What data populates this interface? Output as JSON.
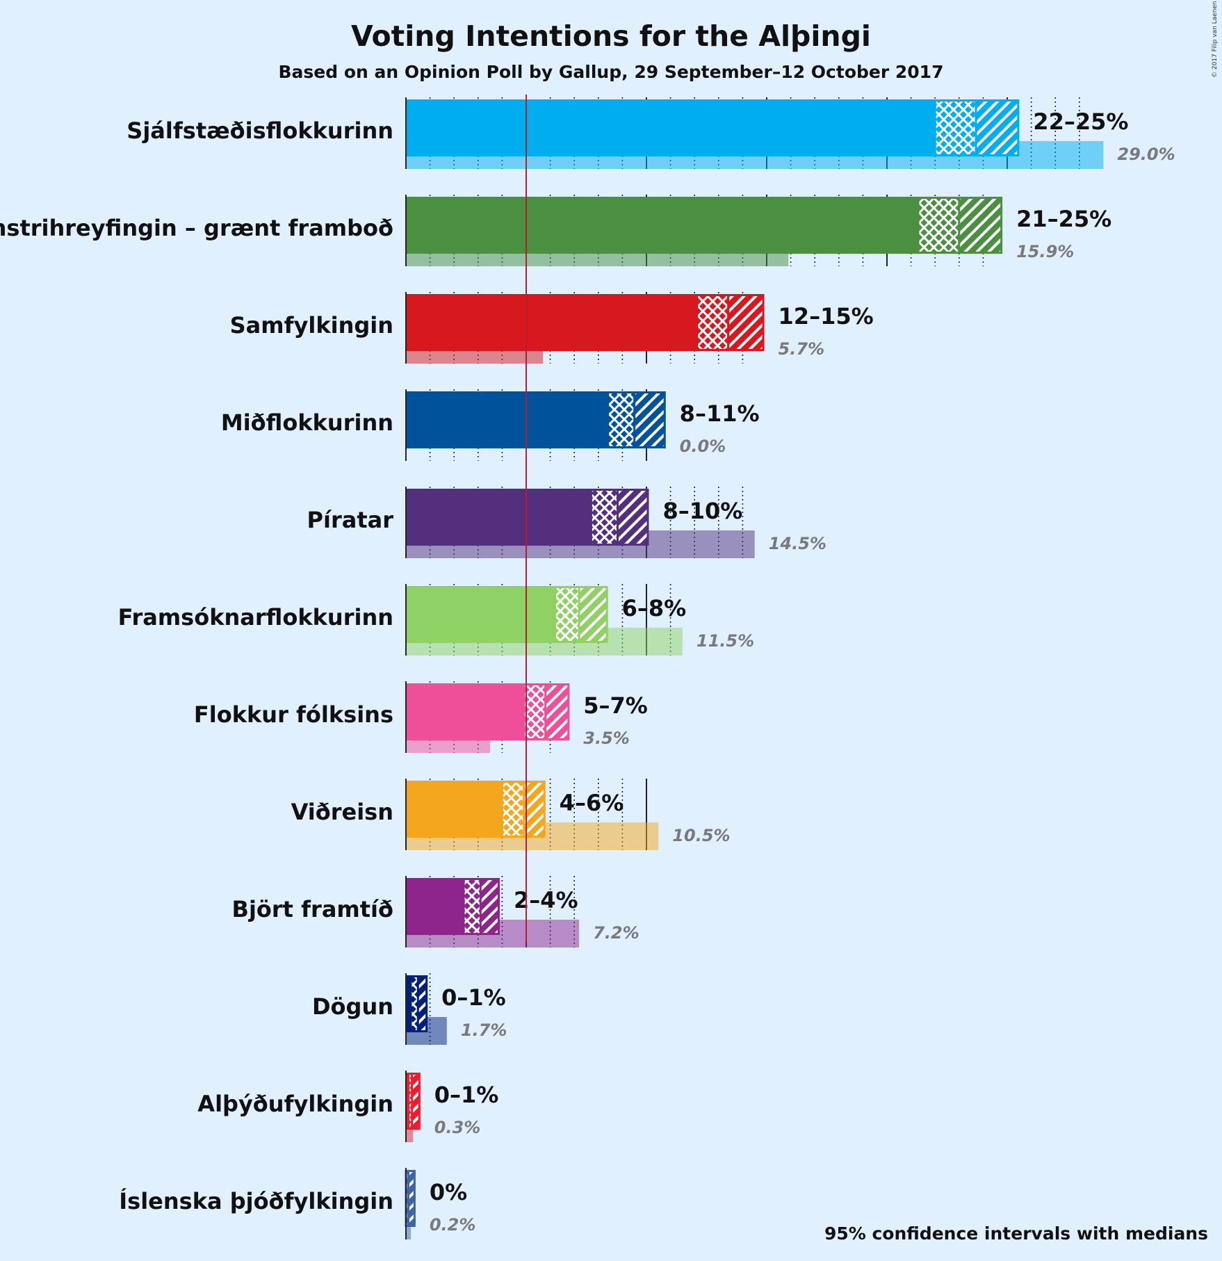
{
  "chart_data": {
    "type": "bar",
    "title": "Voting Intentions for the Alþingi",
    "subtitle": "Based on an Opinion Poll by Gallup, 29 September–12 October 2017",
    "footnote": "95% confidence intervals with medians",
    "copyright": "© 2017 Filip van Laenen",
    "threshold": 5,
    "xlim": [
      0,
      30
    ],
    "parties": [
      {
        "name": "Sjálfstæðisflokkurinn",
        "color": "#00adef",
        "low": 22.0,
        "median": 23.7,
        "high": 25.5,
        "range_label": "22–25%",
        "previous": 29.0,
        "previous_label": "29.0%"
      },
      {
        "name": "Vinstrihreyfingin – grænt framboð",
        "color": "#4a9040",
        "low": 21.3,
        "median": 23.0,
        "high": 24.8,
        "range_label": "21–25%",
        "previous": 15.9,
        "previous_label": "15.9%"
      },
      {
        "name": "Samfylkingin",
        "color": "#d7191f",
        "low": 12.1,
        "median": 13.4,
        "high": 14.9,
        "range_label": "12–15%",
        "previous": 5.7,
        "previous_label": "5.7%"
      },
      {
        "name": "Miðflokkurinn",
        "color": "#00529a",
        "low": 8.4,
        "median": 9.5,
        "high": 10.8,
        "range_label": "8–11%",
        "previous": 0.0,
        "previous_label": "0.0%"
      },
      {
        "name": "Píratar",
        "color": "#542f7e",
        "low": 7.7,
        "median": 8.8,
        "high": 10.1,
        "range_label": "8–10%",
        "previous": 14.5,
        "previous_label": "14.5%"
      },
      {
        "name": "Framsóknarflokkurinn",
        "color": "#8fd164",
        "low": 6.2,
        "median": 7.2,
        "high": 8.4,
        "range_label": "6–8%",
        "previous": 11.5,
        "previous_label": "11.5%"
      },
      {
        "name": "Flokkur fólksins",
        "color": "#ef4e99",
        "low": 4.9,
        "median": 5.8,
        "high": 6.8,
        "range_label": "5–7%",
        "previous": 3.5,
        "previous_label": "3.5%"
      },
      {
        "name": "Viðreisn",
        "color": "#f4a71e",
        "low": 4.0,
        "median": 4.9,
        "high": 5.8,
        "range_label": "4–6%",
        "previous": 10.5,
        "previous_label": "10.5%"
      },
      {
        "name": "Björt framtíð",
        "color": "#8d258d",
        "low": 2.4,
        "median": 3.1,
        "high": 3.9,
        "range_label": "2–4%",
        "previous": 7.2,
        "previous_label": "7.2%"
      },
      {
        "name": "Dögun",
        "color": "#00207a",
        "low": 0.2,
        "median": 0.5,
        "high": 0.9,
        "range_label": "0–1%",
        "previous": 1.7,
        "previous_label": "1.7%"
      },
      {
        "name": "Alþýðufylkingin",
        "color": "#ee1c2c",
        "low": 0.1,
        "median": 0.25,
        "high": 0.6,
        "range_label": "0–1%",
        "previous": 0.3,
        "previous_label": "0.3%"
      },
      {
        "name": "Íslenska þjóðfylkingin",
        "color": "#3c64a6",
        "low": 0.0,
        "median": 0.1,
        "high": 0.4,
        "range_label": "0%",
        "previous": 0.2,
        "previous_label": "0.2%"
      }
    ]
  }
}
